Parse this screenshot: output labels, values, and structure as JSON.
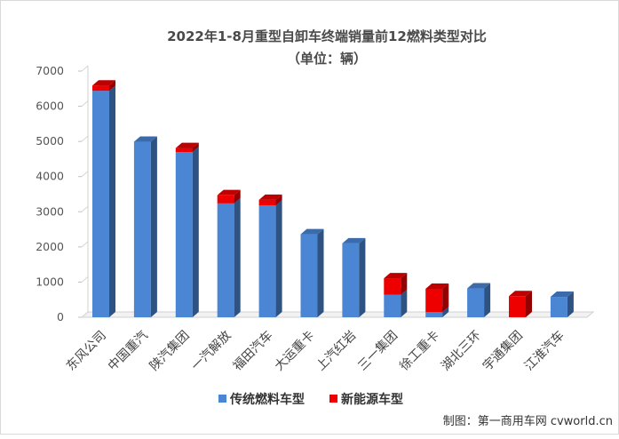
{
  "chart_data": {
    "type": "bar",
    "stacked": true,
    "title": "2022年1-8月重型自卸车终端销量前12燃料类型对比",
    "subtitle": "（单位：辆）",
    "categories": [
      "东风公司",
      "中国重汽",
      "陕汽集团",
      "一汽解放",
      "福田汽车",
      "大运重卡",
      "上汽红岩",
      "三一集团",
      "徐工重卡",
      "湖北三环",
      "宇通集团",
      "江淮汽车"
    ],
    "series": [
      {
        "name": "传统燃料车型",
        "color": "#4a86d4",
        "values": [
          6440,
          4990,
          4700,
          3240,
          3180,
          2360,
          2100,
          640,
          150,
          820,
          0,
          580
        ]
      },
      {
        "name": "新能源车型",
        "color": "#ee0000",
        "values": [
          150,
          0,
          110,
          230,
          160,
          0,
          0,
          470,
          660,
          0,
          600,
          0
        ]
      }
    ],
    "yticks": [
      0,
      1000,
      2000,
      3000,
      4000,
      5000,
      6000,
      7000
    ],
    "ylim": [
      0,
      7000
    ],
    "xlabel": "",
    "ylabel": "",
    "legend_position": "bottom",
    "grid": false
  },
  "footer": {
    "source": "制图：第一商用车网 cvworld.cn"
  }
}
